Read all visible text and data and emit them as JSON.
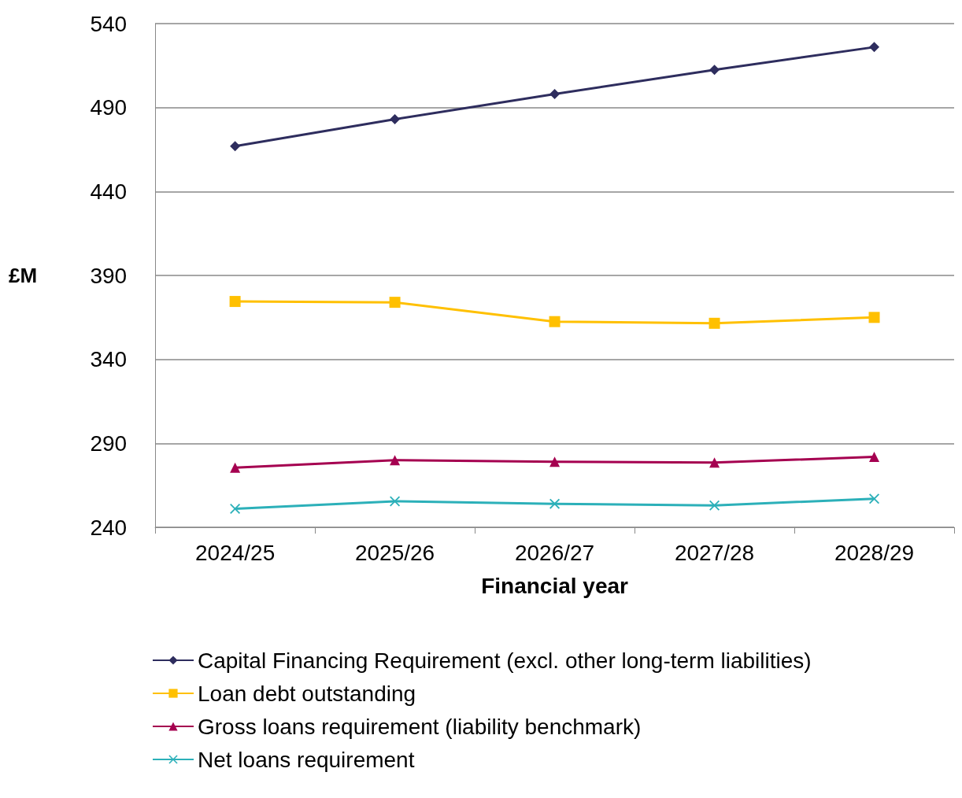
{
  "chart_data": {
    "type": "line",
    "xlabel": "Financial year",
    "ylabel": "£M",
    "categories": [
      "2024/25",
      "2025/26",
      "2026/27",
      "2027/28",
      "2028/29"
    ],
    "ylim": [
      240,
      540
    ],
    "yticks": [
      240,
      290,
      340,
      390,
      440,
      490,
      540
    ],
    "grid": "y",
    "legend": "bottom",
    "line_style": "solid",
    "series": [
      {
        "name": "Capital Financing Requirement (excl. other long-term liabilities)",
        "color": "#2e2d5e",
        "marker": "diamond",
        "values": [
          467,
          483,
          498,
          512.5,
          526
        ]
      },
      {
        "name": "Loan debt outstanding",
        "color": "#ffc000",
        "marker": "square",
        "values": [
          374.5,
          374,
          362.5,
          361.5,
          365
        ]
      },
      {
        "name": "Gross loans requirement (liability benchmark)",
        "color": "#a50050",
        "marker": "triangle",
        "values": [
          275.5,
          280,
          279,
          278.5,
          282
        ]
      },
      {
        "name": "Net loans requirement",
        "color": "#2cb0b9",
        "marker": "cross",
        "values": [
          251,
          255.5,
          254,
          253,
          257
        ]
      }
    ]
  }
}
